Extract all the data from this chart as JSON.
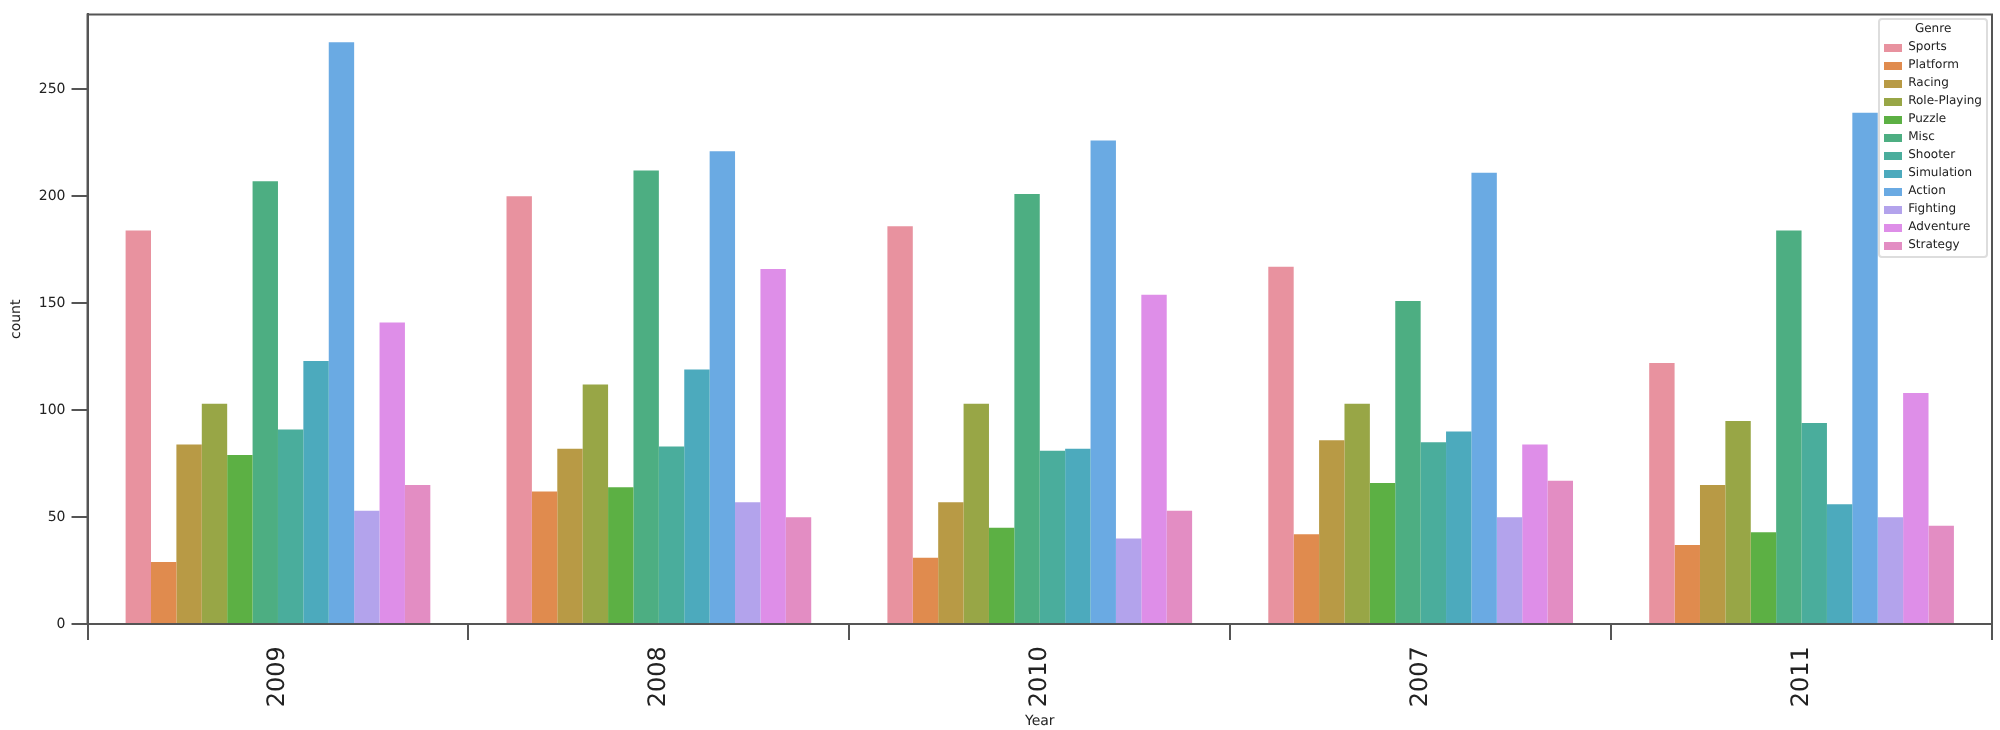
{
  "chart_data": {
    "type": "bar",
    "xlabel": "Year",
    "ylabel": "count",
    "legend_title": "Genre",
    "legend": "top right",
    "grid": false,
    "categories": [
      "2009",
      "2008",
      "2010",
      "2007",
      "2011"
    ],
    "ylim": [
      0,
      285
    ],
    "yticks": [
      0,
      50,
      100,
      150,
      200,
      250
    ],
    "series": [
      {
        "name": "Sports",
        "color": "#e8929f",
        "values": [
          184,
          200,
          186,
          167,
          122
        ]
      },
      {
        "name": "Platform",
        "color": "#e08b4e",
        "values": [
          29,
          62,
          31,
          42,
          37
        ]
      },
      {
        "name": "Racing",
        "color": "#b89a45",
        "values": [
          84,
          82,
          57,
          86,
          65
        ]
      },
      {
        "name": "Role-Playing",
        "color": "#98a646",
        "values": [
          103,
          112,
          103,
          103,
          95
        ]
      },
      {
        "name": "Puzzle",
        "color": "#5cb044",
        "values": [
          79,
          64,
          45,
          66,
          43
        ]
      },
      {
        "name": "Misc",
        "color": "#4dae82",
        "values": [
          207,
          212,
          201,
          151,
          184
        ]
      },
      {
        "name": "Shooter",
        "color": "#4aad9c",
        "values": [
          91,
          83,
          81,
          85,
          94
        ]
      },
      {
        "name": "Simulation",
        "color": "#4caabd",
        "values": [
          123,
          119,
          82,
          90,
          56
        ]
      },
      {
        "name": "Action",
        "color": "#6aaae3",
        "values": [
          272,
          221,
          226,
          211,
          239
        ]
      },
      {
        "name": "Fighting",
        "color": "#b3a3ec",
        "values": [
          53,
          57,
          40,
          50,
          50
        ]
      },
      {
        "name": "Adventure",
        "color": "#de8ee8",
        "values": [
          141,
          166,
          154,
          84,
          108
        ]
      },
      {
        "name": "Strategy",
        "color": "#e38dc3",
        "values": [
          65,
          50,
          53,
          67,
          46
        ]
      }
    ]
  }
}
